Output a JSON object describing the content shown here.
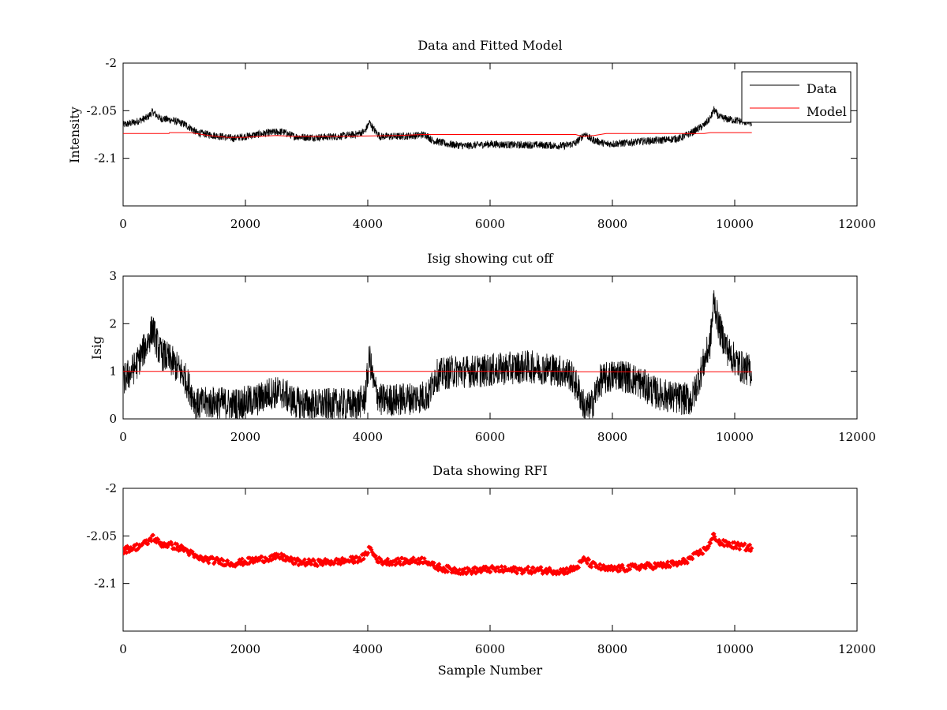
{
  "chart_data": [
    {
      "type": "line",
      "title": "Data and Fitted Model",
      "xlabel": "",
      "ylabel": "Intensity",
      "xlim": [
        0,
        12000
      ],
      "ylim": [
        -2.15,
        -2.0
      ],
      "xticks": [
        "0",
        "2000",
        "4000",
        "6000",
        "8000",
        "10000",
        "12000"
      ],
      "yticks": [
        "-2",
        "-2.05",
        "-2.1"
      ],
      "yticks_values": [
        -2.0,
        -2.05,
        -2.1
      ],
      "grid": false,
      "legend_position": "top-right",
      "series": [
        {
          "name": "Data",
          "color": "#000000",
          "style": "line",
          "points": [
            [
              0,
              -2.065
            ],
            [
              200,
              -2.062
            ],
            [
              400,
              -2.057
            ],
            [
              480,
              -2.051
            ],
            [
              600,
              -2.058
            ],
            [
              800,
              -2.06
            ],
            [
              1000,
              -2.064
            ],
            [
              1100,
              -2.068
            ],
            [
              1200,
              -2.073
            ],
            [
              1500,
              -2.076
            ],
            [
              1800,
              -2.079
            ],
            [
              2000,
              -2.077
            ],
            [
              2200,
              -2.075
            ],
            [
              2400,
              -2.073
            ],
            [
              2600,
              -2.072
            ],
            [
              2800,
              -2.077
            ],
            [
              3000,
              -2.078
            ],
            [
              3200,
              -2.078
            ],
            [
              3500,
              -2.077
            ],
            [
              3800,
              -2.075
            ],
            [
              3950,
              -2.072
            ],
            [
              4030,
              -2.062
            ],
            [
              4100,
              -2.07
            ],
            [
              4200,
              -2.077
            ],
            [
              4500,
              -2.077
            ],
            [
              4800,
              -2.076
            ],
            [
              4950,
              -2.075
            ],
            [
              5050,
              -2.081
            ],
            [
              5300,
              -2.085
            ],
            [
              5600,
              -2.087
            ],
            [
              6000,
              -2.085
            ],
            [
              6400,
              -2.086
            ],
            [
              6800,
              -2.086
            ],
            [
              7200,
              -2.087
            ],
            [
              7400,
              -2.084
            ],
            [
              7550,
              -2.074
            ],
            [
              7650,
              -2.08
            ],
            [
              7900,
              -2.085
            ],
            [
              8200,
              -2.084
            ],
            [
              8500,
              -2.082
            ],
            [
              8800,
              -2.081
            ],
            [
              9100,
              -2.079
            ],
            [
              9300,
              -2.073
            ],
            [
              9500,
              -2.065
            ],
            [
              9600,
              -2.058
            ],
            [
              9660,
              -2.049
            ],
            [
              9750,
              -2.057
            ],
            [
              9900,
              -2.059
            ],
            [
              10100,
              -2.061
            ],
            [
              10280,
              -2.063
            ]
          ],
          "noise_amplitude": 0.004
        },
        {
          "name": "Model",
          "color": "#ff0000",
          "style": "line",
          "points": [
            [
              0,
              -2.074
            ],
            [
              750,
              -2.074
            ],
            [
              760,
              -2.073
            ],
            [
              1100,
              -2.073
            ],
            [
              1400,
              -2.076
            ],
            [
              1700,
              -2.078
            ],
            [
              2000,
              -2.078
            ],
            [
              2200,
              -2.077
            ],
            [
              2500,
              -2.076
            ],
            [
              2800,
              -2.077
            ],
            [
              3500,
              -2.077
            ],
            [
              4500,
              -2.076
            ],
            [
              4900,
              -2.075
            ],
            [
              5500,
              -2.075
            ],
            [
              7400,
              -2.075
            ],
            [
              7500,
              -2.077
            ],
            [
              7700,
              -2.076
            ],
            [
              7900,
              -2.074
            ],
            [
              8100,
              -2.074
            ],
            [
              9000,
              -2.074
            ],
            [
              9500,
              -2.074
            ],
            [
              9600,
              -2.073
            ],
            [
              10280,
              -2.073
            ]
          ]
        }
      ]
    },
    {
      "type": "line",
      "title": "Isig showing cut off",
      "xlabel": "",
      "ylabel": "Isig",
      "xlim": [
        0,
        12000
      ],
      "ylim": [
        0,
        3
      ],
      "xticks": [
        "0",
        "2000",
        "4000",
        "6000",
        "8000",
        "10000",
        "12000"
      ],
      "yticks": [
        "0",
        "1",
        "2",
        "3"
      ],
      "yticks_values": [
        0,
        1,
        2,
        3
      ],
      "grid": false,
      "series": [
        {
          "color": "#000000",
          "style": "line",
          "points": [
            [
              0,
              0.8
            ],
            [
              200,
              1.1
            ],
            [
              400,
              1.6
            ],
            [
              480,
              1.9
            ],
            [
              600,
              1.4
            ],
            [
              800,
              1.2
            ],
            [
              1000,
              0.9
            ],
            [
              1100,
              0.6
            ],
            [
              1200,
              0.3
            ],
            [
              1500,
              0.35
            ],
            [
              1800,
              0.3
            ],
            [
              2000,
              0.35
            ],
            [
              2200,
              0.4
            ],
            [
              2400,
              0.55
            ],
            [
              2600,
              0.55
            ],
            [
              2800,
              0.35
            ],
            [
              3000,
              0.3
            ],
            [
              3400,
              0.3
            ],
            [
              3800,
              0.3
            ],
            [
              3950,
              0.4
            ],
            [
              4030,
              1.3
            ],
            [
              4100,
              0.7
            ],
            [
              4200,
              0.4
            ],
            [
              4500,
              0.4
            ],
            [
              4800,
              0.45
            ],
            [
              5000,
              0.5
            ],
            [
              5100,
              0.9
            ],
            [
              5400,
              1.0
            ],
            [
              5800,
              1.0
            ],
            [
              6200,
              1.05
            ],
            [
              6600,
              1.1
            ],
            [
              7000,
              1.05
            ],
            [
              7300,
              0.95
            ],
            [
              7450,
              0.6
            ],
            [
              7550,
              0.2
            ],
            [
              7650,
              0.25
            ],
            [
              7800,
              0.8
            ],
            [
              8100,
              0.95
            ],
            [
              8400,
              0.8
            ],
            [
              8700,
              0.55
            ],
            [
              9000,
              0.45
            ],
            [
              9300,
              0.4
            ],
            [
              9450,
              1.0
            ],
            [
              9600,
              1.6
            ],
            [
              9660,
              2.5
            ],
            [
              9750,
              1.9
            ],
            [
              9900,
              1.4
            ],
            [
              10100,
              1.1
            ],
            [
              10280,
              1.0
            ]
          ],
          "noise_amplitude": 0.35
        },
        {
          "color": "#ff0000",
          "style": "line",
          "points": [
            [
              0,
              1.0
            ],
            [
              7400,
              1.0
            ],
            [
              7420,
              0.99
            ],
            [
              10280,
              0.99
            ]
          ]
        }
      ]
    },
    {
      "type": "scatter",
      "title": "Data showing RFI",
      "xlabel": "Sample Number",
      "ylabel": "",
      "xlim": [
        0,
        12000
      ],
      "ylim": [
        -2.15,
        -2.0
      ],
      "xticks": [
        "0",
        "2000",
        "4000",
        "6000",
        "8000",
        "10000",
        "12000"
      ],
      "yticks": [
        "-2",
        "-2.05",
        "-2.1"
      ],
      "yticks_values": [
        -2.0,
        -2.05,
        -2.1
      ],
      "grid": false,
      "series": [
        {
          "color": "#ff0000",
          "style": "markers",
          "points_from_series": "Data",
          "noise_amplitude": 0.0035
        }
      ]
    }
  ]
}
